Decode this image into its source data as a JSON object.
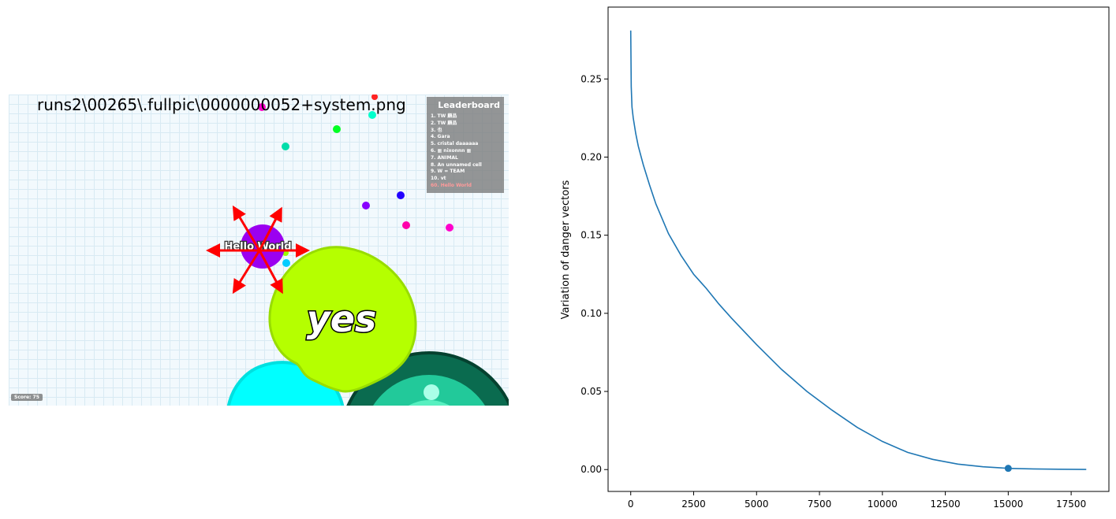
{
  "game": {
    "title": "runs2\\00265\\.fullpic\\0000000052+system.png",
    "player_name": "Hello World",
    "big_cell_text": "yes",
    "score_label": "Score: 75",
    "leaderboard_title": "Leaderboard",
    "leaderboard": [
      "1. TW      顧品",
      "2. TW      顧品",
      "3. 也",
      "4. Gara",
      "5. cristal daaaaaa",
      "6. ▦ nixonnn ▦",
      "7. ANIMAL",
      "8. An unnamed cell",
      "9. W = TEAM",
      "10. vt",
      "60. Hello World"
    ],
    "colors": {
      "player": "#9b00f0",
      "big_cell": "#b5ff00",
      "cyan_cell": "#00ffff",
      "arrow": "#ff0000",
      "leaderboard_self": "#ff9a9a"
    }
  },
  "chart_data": {
    "type": "line",
    "xlabel": "",
    "ylabel": "Variation of danger vectors",
    "xlim": [
      -900,
      19000
    ],
    "ylim": [
      -0.014,
      0.296
    ],
    "x_ticks": [
      0,
      2500,
      5000,
      7500,
      10000,
      12500,
      15000,
      17500
    ],
    "x_tick_labels": [
      "0",
      "2500",
      "5000",
      "7500",
      "10000",
      "12500",
      "15000",
      "17500"
    ],
    "y_ticks": [
      0.0,
      0.05,
      0.1,
      0.15,
      0.2,
      0.25
    ],
    "y_tick_labels": [
      "0.00",
      "0.05",
      "0.10",
      "0.15",
      "0.20",
      "0.25"
    ],
    "line_color": "#1f77b4",
    "x": [
      0,
      20,
      50,
      100,
      200,
      300,
      500,
      750,
      1000,
      1500,
      2000,
      2500,
      3000,
      3500,
      4000,
      5000,
      6000,
      7000,
      8000,
      9000,
      10000,
      11000,
      12000,
      13000,
      14000,
      15000,
      16000,
      17000,
      18100
    ],
    "values": [
      0.281,
      0.245,
      0.232,
      0.225,
      0.215,
      0.207,
      0.195,
      0.182,
      0.17,
      0.151,
      0.137,
      0.125,
      0.116,
      0.106,
      0.097,
      0.08,
      0.064,
      0.05,
      0.038,
      0.027,
      0.018,
      0.011,
      0.0065,
      0.0035,
      0.0018,
      0.0008,
      0.0004,
      0.0002,
      0.0001
    ],
    "marker": {
      "x": 15000,
      "y": 0.0008
    }
  }
}
